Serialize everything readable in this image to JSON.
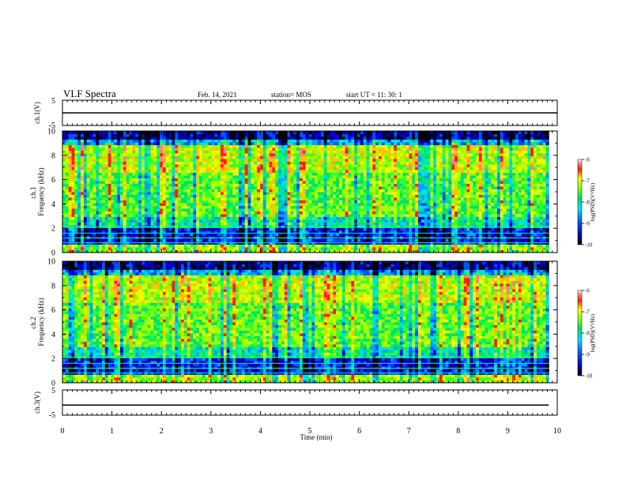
{
  "header": {
    "title": "VLF Spectra",
    "date": "Feb. 14, 2021",
    "station": "station= MOS",
    "start": "start  UT =   11: 30: 1"
  },
  "chart_data": [
    {
      "type": "line",
      "panel": "ch1-waveform",
      "ylabel": "ch.1(V)",
      "ylim": [
        -5,
        5
      ],
      "yticks": [
        "5",
        "-5"
      ],
      "x": [
        0,
        10
      ],
      "values": [
        0,
        0
      ]
    },
    {
      "type": "heatmap",
      "panel": "ch1-spectrogram",
      "ylabel": "ch.1\nFrequency (kHz)",
      "ylim": [
        0,
        10
      ],
      "yticks": [
        "0",
        "2",
        "4",
        "6",
        "8",
        "10"
      ],
      "xlim": [
        0,
        9.83
      ],
      "colorbar": {
        "label": "log(PSD)(V²/Hz)",
        "range": [
          -10,
          -6
        ],
        "ticks": [
          "-6",
          "-7",
          "-8",
          "-9",
          "-10"
        ]
      }
    },
    {
      "type": "heatmap",
      "panel": "ch2-spectrogram",
      "ylabel": "ch.2\nFrequency (kHz)",
      "ylim": [
        0,
        10
      ],
      "yticks": [
        "0",
        "2",
        "4",
        "6",
        "8",
        "10"
      ],
      "xlim": [
        0,
        9.83
      ],
      "colorbar": {
        "label": "log(PSD)(V²/Hz)",
        "range": [
          -10,
          -6
        ],
        "ticks": [
          "-6",
          "-7",
          "-8",
          "-9",
          "-10"
        ]
      }
    },
    {
      "type": "line",
      "panel": "ch3-waveform",
      "ylabel": "ch.3(V)",
      "ylim": [
        -5,
        5
      ],
      "yticks": [
        "5",
        "-5"
      ],
      "x": [
        0,
        9.83
      ],
      "values": [
        -1,
        -1
      ]
    }
  ],
  "xaxis": {
    "label": "Time  (min)",
    "xlim": [
      0,
      10
    ],
    "ticks": [
      "0",
      "1",
      "2",
      "3",
      "4",
      "5",
      "6",
      "7",
      "8",
      "9",
      "10"
    ]
  }
}
